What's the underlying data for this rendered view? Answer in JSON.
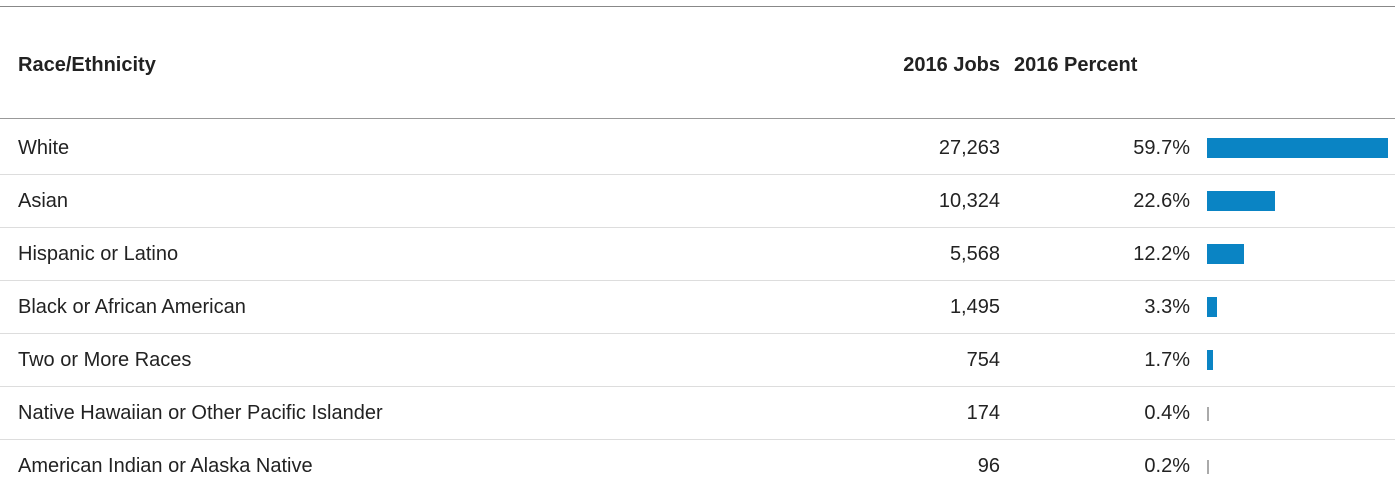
{
  "table": {
    "header": [
      "Race/Ethnicity",
      "2016 Jobs",
      "2016 Percent"
    ],
    "rows": [
      {
        "label": "White",
        "jobs": "27,263",
        "percent": 59.7,
        "percent_label": "59.7%"
      },
      {
        "label": "Asian",
        "jobs": "10,324",
        "percent": 22.6,
        "percent_label": "22.6%"
      },
      {
        "label": "Hispanic or Latino",
        "jobs": "5,568",
        "percent": 12.2,
        "percent_label": "12.2%"
      },
      {
        "label": "Black or African American",
        "jobs": "1,495",
        "percent": 3.3,
        "percent_label": "3.3%"
      },
      {
        "label": "Two or More Races",
        "jobs": "754",
        "percent": 1.7,
        "percent_label": "1.7%"
      },
      {
        "label": "Native Hawaiian or Other Pacific Islander",
        "jobs": "174",
        "percent": 0.4,
        "percent_label": "0.4%"
      },
      {
        "label": "American Indian or Alaska Native",
        "jobs": "96",
        "percent": 0.2,
        "percent_label": "0.2%"
      }
    ]
  }
}
